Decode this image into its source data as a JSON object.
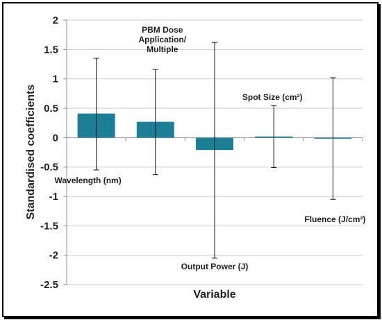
{
  "chart_data": {
    "type": "bar",
    "title": "",
    "xlabel": "Variable",
    "ylabel": "Standardised coefficients",
    "ylim": [
      -2.5,
      2
    ],
    "yticks": [
      2,
      1.5,
      1,
      0.5,
      0,
      -0.5,
      -1,
      -1.5,
      -2,
      -2.5
    ],
    "ytick_labels": [
      "2",
      "1.5",
      "1",
      "0.5",
      "0",
      "-0.5",
      "-1",
      "-1.5",
      "-2",
      "-2.5"
    ],
    "grid": true,
    "bar_color": "#1b7f96",
    "categories": [
      "Wavelength (nm)",
      "PBM Dose Application/ Multiple",
      "Output Power (J)",
      "Spot Size (cm²)",
      "Fluence (J/cm²)"
    ],
    "category_labels": [
      [
        "Wavelength (nm)"
      ],
      [
        "PBM Dose",
        "Application/",
        "Multiple"
      ],
      [
        "Output Power (J)"
      ],
      [
        "Spot Size (cm²)"
      ],
      [
        "Fluence (J/cm²)"
      ]
    ],
    "values": [
      0.41,
      0.27,
      -0.21,
      0.02,
      -0.01
    ],
    "error_low": [
      -0.55,
      -0.63,
      -2.05,
      -0.51,
      -1.05
    ],
    "error_high": [
      1.35,
      1.16,
      1.62,
      0.55,
      1.02
    ]
  }
}
